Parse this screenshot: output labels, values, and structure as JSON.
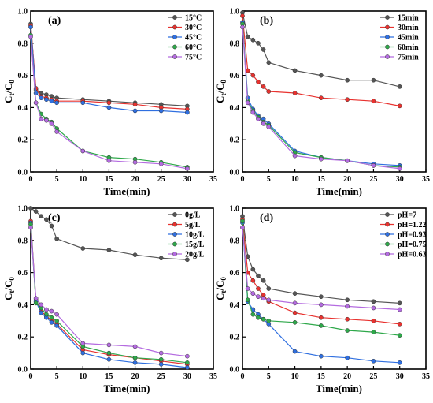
{
  "chart_data": [
    {
      "type": "line",
      "panel_label": "(a)",
      "xlabel": "Time(min)",
      "ylabel": "Ct/C0",
      "xlim": [
        0,
        35
      ],
      "ylim": [
        0,
        1.0
      ],
      "xticks": [
        0,
        5,
        10,
        15,
        20,
        25,
        30,
        35
      ],
      "yticks": [
        0.0,
        0.2,
        0.4,
        0.6,
        0.8,
        1.0
      ],
      "legend_position": "top-right",
      "x": [
        0,
        1,
        2,
        3,
        4,
        5,
        10,
        15,
        20,
        25,
        30
      ],
      "series": [
        {
          "name": "15°C",
          "color": "#555555",
          "values": [
            0.92,
            0.51,
            0.49,
            0.48,
            0.47,
            0.46,
            0.45,
            0.44,
            0.43,
            0.42,
            0.41
          ]
        },
        {
          "name": "30°C",
          "color": "#e8322f",
          "values": [
            0.91,
            0.52,
            0.47,
            0.46,
            0.45,
            0.44,
            0.44,
            0.43,
            0.42,
            0.4,
            0.39
          ]
        },
        {
          "name": "45°C",
          "color": "#2f6fe0",
          "values": [
            0.9,
            0.49,
            0.46,
            0.45,
            0.44,
            0.43,
            0.43,
            0.4,
            0.38,
            0.38,
            0.37
          ]
        },
        {
          "name": "60°C",
          "color": "#2ea84a",
          "values": [
            0.85,
            0.43,
            0.36,
            0.33,
            0.31,
            0.27,
            0.13,
            0.09,
            0.08,
            0.06,
            0.03
          ]
        },
        {
          "name": "75°C",
          "color": "#b46be0",
          "values": [
            0.84,
            0.43,
            0.33,
            0.32,
            0.3,
            0.25,
            0.13,
            0.07,
            0.06,
            0.05,
            0.02
          ]
        }
      ]
    },
    {
      "type": "line",
      "panel_label": "(b)",
      "xlabel": "Time(min)",
      "ylabel": "Ct/C0",
      "xlim": [
        0,
        35
      ],
      "ylim": [
        0,
        1.0
      ],
      "xticks": [
        0,
        5,
        10,
        15,
        20,
        25,
        30,
        35
      ],
      "yticks": [
        0.0,
        0.2,
        0.4,
        0.6,
        0.8,
        1.0
      ],
      "legend_position": "top-right",
      "x": [
        0,
        1,
        2,
        3,
        4,
        5,
        10,
        15,
        20,
        25,
        30
      ],
      "series": [
        {
          "name": "15min",
          "color": "#555555",
          "values": [
            0.99,
            0.84,
            0.82,
            0.8,
            0.76,
            0.68,
            0.63,
            0.6,
            0.57,
            0.57,
            0.53
          ]
        },
        {
          "name": "30min",
          "color": "#e8322f",
          "values": [
            0.97,
            0.63,
            0.6,
            0.56,
            0.53,
            0.5,
            0.49,
            0.46,
            0.45,
            0.44,
            0.41
          ]
        },
        {
          "name": "45min",
          "color": "#2f6fe0",
          "values": [
            0.93,
            0.46,
            0.39,
            0.35,
            0.33,
            0.3,
            0.13,
            0.09,
            0.07,
            0.05,
            0.04
          ]
        },
        {
          "name": "60min",
          "color": "#2ea84a",
          "values": [
            0.92,
            0.44,
            0.38,
            0.34,
            0.31,
            0.29,
            0.12,
            0.09,
            0.07,
            0.04,
            0.03
          ]
        },
        {
          "name": "75min",
          "color": "#b46be0",
          "values": [
            0.9,
            0.43,
            0.37,
            0.33,
            0.3,
            0.28,
            0.1,
            0.08,
            0.07,
            0.04,
            0.02
          ]
        }
      ]
    },
    {
      "type": "line",
      "panel_label": "(c)",
      "xlabel": "Time(min)",
      "ylabel": "Ct/C0",
      "xlim": [
        0,
        35
      ],
      "ylim": [
        0,
        1.0
      ],
      "xticks": [
        0,
        5,
        10,
        15,
        20,
        25,
        30,
        35
      ],
      "yticks": [
        0.0,
        0.2,
        0.4,
        0.6,
        0.8,
        1.0
      ],
      "legend_position": "top-right",
      "x": [
        0,
        1,
        2,
        3,
        4,
        5,
        10,
        15,
        20,
        25,
        30
      ],
      "series": [
        {
          "name": "0g/L",
          "color": "#555555",
          "values": [
            1.0,
            0.98,
            0.95,
            0.93,
            0.89,
            0.81,
            0.75,
            0.74,
            0.71,
            0.69,
            0.68
          ]
        },
        {
          "name": "5g/L",
          "color": "#e8322f",
          "values": [
            0.92,
            0.43,
            0.36,
            0.33,
            0.3,
            0.28,
            0.12,
            0.09,
            0.07,
            0.05,
            0.03
          ]
        },
        {
          "name": "10g/L",
          "color": "#2f6fe0",
          "values": [
            0.91,
            0.42,
            0.35,
            0.32,
            0.29,
            0.27,
            0.1,
            0.06,
            0.04,
            0.03,
            0.01
          ]
        },
        {
          "name": "15g/L",
          "color": "#2ea84a",
          "values": [
            0.9,
            0.41,
            0.38,
            0.34,
            0.32,
            0.3,
            0.14,
            0.1,
            0.07,
            0.06,
            0.04
          ]
        },
        {
          "name": "20g/L",
          "color": "#b46be0",
          "values": [
            0.88,
            0.44,
            0.4,
            0.37,
            0.36,
            0.34,
            0.16,
            0.15,
            0.14,
            0.1,
            0.08
          ]
        }
      ]
    },
    {
      "type": "line",
      "panel_label": "(d)",
      "xlabel": "Time(min)",
      "ylabel": "Ct/C0",
      "xlim": [
        0,
        35
      ],
      "ylim": [
        0,
        1.0
      ],
      "xticks": [
        0,
        5,
        10,
        15,
        20,
        25,
        30,
        35
      ],
      "yticks": [
        0.0,
        0.2,
        0.4,
        0.6,
        0.8,
        1.0
      ],
      "legend_position": "top-right",
      "x": [
        0,
        1,
        2,
        3,
        4,
        5,
        10,
        15,
        20,
        25,
        30
      ],
      "series": [
        {
          "name": "pH=7",
          "color": "#555555",
          "values": [
            0.95,
            0.7,
            0.62,
            0.58,
            0.55,
            0.5,
            0.47,
            0.45,
            0.43,
            0.42,
            0.41
          ]
        },
        {
          "name": "pH=1.22",
          "color": "#e8322f",
          "values": [
            0.93,
            0.6,
            0.55,
            0.5,
            0.46,
            0.42,
            0.35,
            0.32,
            0.31,
            0.3,
            0.28
          ]
        },
        {
          "name": "pH=0.93",
          "color": "#2f6fe0",
          "values": [
            0.91,
            0.42,
            0.37,
            0.34,
            0.31,
            0.28,
            0.11,
            0.08,
            0.07,
            0.05,
            0.04
          ]
        },
        {
          "name": "pH=0.75",
          "color": "#2ea84a",
          "values": [
            0.92,
            0.43,
            0.34,
            0.32,
            0.31,
            0.3,
            0.29,
            0.27,
            0.24,
            0.23,
            0.21
          ]
        },
        {
          "name": "pH=0.63",
          "color": "#b46be0",
          "values": [
            0.88,
            0.5,
            0.47,
            0.45,
            0.44,
            0.43,
            0.41,
            0.4,
            0.39,
            0.38,
            0.37
          ]
        }
      ]
    }
  ]
}
